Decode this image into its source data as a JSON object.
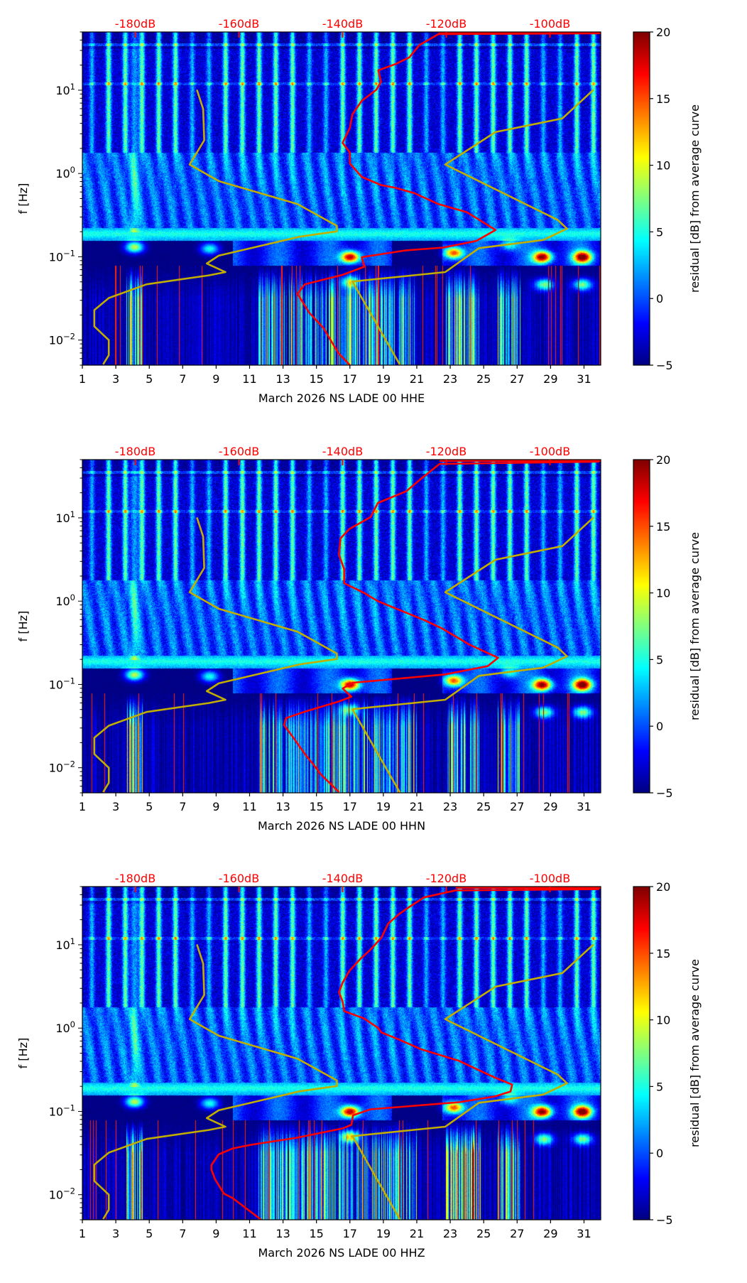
{
  "colors": {
    "psd_curve": "#ff0000",
    "noise_models": "#c2ae00",
    "top_axis_text": "#ff0000"
  },
  "noise_models": {
    "low_noise_model": [
      [
        10.1,
        -168.1
      ],
      [
        5.96,
        -166.9
      ],
      [
        2.5,
        -166.7
      ],
      [
        1.28,
        -169.5
      ],
      [
        0.81,
        -163.9
      ],
      [
        0.43,
        -148.7
      ],
      [
        0.235,
        -141.1
      ],
      [
        0.202,
        -141.1
      ],
      [
        0.174,
        -148.3
      ],
      [
        0.103,
        -163.9
      ],
      [
        0.083,
        -166.2
      ],
      [
        0.0655,
        -162.6
      ],
      [
        0.0598,
        -165.8
      ],
      [
        0.0467,
        -177.8
      ],
      [
        0.032,
        -185.1
      ],
      [
        0.0229,
        -187.9
      ],
      [
        0.0146,
        -187.9
      ],
      [
        0.01,
        -185.1
      ],
      [
        0.0066,
        -185.1
      ],
      [
        0.0051,
        -186.2
      ]
    ],
    "high_noise_model": [
      [
        10.1,
        -91.6
      ],
      [
        4.58,
        -97.6
      ],
      [
        3.14,
        -110.5
      ],
      [
        1.28,
        -120.2
      ],
      [
        0.277,
        -98.5
      ],
      [
        0.218,
        -96.7
      ],
      [
        0.159,
        -101.3
      ],
      [
        0.127,
        -113.7
      ],
      [
        0.0655,
        -120.2
      ],
      [
        0.0504,
        -138.1
      ],
      [
        0.005,
        -128.9
      ]
    ]
  },
  "chart_data": [
    {
      "type": "heatmap",
      "xlabel": "March 2026 NS LADE 00 HHE",
      "ylabel": "f [Hz]",
      "xlim": [
        1,
        32
      ],
      "x_ticks": [
        "1",
        "3",
        "5",
        "7",
        "9",
        "11",
        "13",
        "15",
        "17",
        "19",
        "21",
        "23",
        "25",
        "27",
        "29",
        "31"
      ],
      "ylim": [
        0.005,
        50
      ],
      "yscale": "log",
      "y_ticks": [
        {
          "value": 10,
          "base": "10",
          "exp": "1"
        },
        {
          "value": 1,
          "base": "10",
          "exp": "0"
        },
        {
          "value": 0.1,
          "base": "10",
          "exp": "−1"
        },
        {
          "value": 0.01,
          "base": "10",
          "exp": "−2"
        }
      ],
      "top_axis": {
        "range_db": [
          -190.2,
          -90.2
        ],
        "values": [
          -180,
          -160,
          -140,
          -120,
          -100
        ],
        "labels": [
          "-180dB",
          "-160dB",
          "-140dB",
          "-120dB",
          "-100dB"
        ]
      },
      "colorbar": {
        "min": -5,
        "max": 20,
        "ticks": [
          "−5",
          "0",
          "5",
          "10",
          "15",
          "20"
        ],
        "tick_values": [
          -5,
          0,
          5,
          10,
          15,
          20
        ],
        "label": "residual [dB] from average curve",
        "colormap": "jet"
      },
      "events": [
        [
          4.1,
          -0.88,
          14
        ],
        [
          8.6,
          -0.9,
          10
        ],
        [
          17.0,
          -1.0,
          22
        ],
        [
          23.2,
          -0.95,
          18
        ],
        [
          28.5,
          -1.0,
          22
        ],
        [
          30.9,
          -1.0,
          22
        ],
        [
          26.5,
          -0.85,
          8
        ],
        [
          28.6,
          -1.33,
          12
        ],
        [
          30.9,
          -1.33,
          12
        ],
        [
          17,
          -1.3,
          10
        ]
      ],
      "psd_curve": [
        [
          48.2,
          -90.7
        ],
        [
          47.1,
          -121.5
        ],
        [
          34.8,
          -125.2
        ],
        [
          24.8,
          -127.1
        ],
        [
          20.6,
          -129.8
        ],
        [
          17.3,
          -133.1
        ],
        [
          12.6,
          -132.6
        ],
        [
          10.1,
          -133.5
        ],
        [
          7.46,
          -136.3
        ],
        [
          5.13,
          -138.1
        ],
        [
          3.52,
          -138.6
        ],
        [
          2.33,
          -140.0
        ],
        [
          1.79,
          -138.6
        ],
        [
          1.32,
          -138.6
        ],
        [
          0.91,
          -136.3
        ],
        [
          0.726,
          -132.6
        ],
        [
          0.673,
          -129.8
        ],
        [
          0.579,
          -126.1
        ],
        [
          0.429,
          -121.5
        ],
        [
          0.342,
          -116.0
        ],
        [
          0.21,
          -110.5
        ],
        [
          0.155,
          -114.2
        ],
        [
          0.129,
          -120.6
        ],
        [
          0.119,
          -128.0
        ],
        [
          0.099,
          -136.3
        ],
        [
          0.076,
          -135.8
        ],
        [
          0.0607,
          -140.0
        ],
        [
          0.0467,
          -147.3
        ],
        [
          0.0359,
          -148.7
        ],
        [
          0.0212,
          -146.4
        ],
        [
          0.014,
          -143.7
        ],
        [
          0.0071,
          -140.9
        ],
        [
          0.005,
          -138.6
        ]
      ]
    },
    {
      "type": "heatmap",
      "xlabel": "March 2026 NS LADE 00 HHN",
      "ylabel": "f [Hz]",
      "xlim": [
        1,
        32
      ],
      "x_ticks": [
        "1",
        "3",
        "5",
        "7",
        "9",
        "11",
        "13",
        "15",
        "17",
        "19",
        "21",
        "23",
        "25",
        "27",
        "29",
        "31"
      ],
      "ylim": [
        0.005,
        50
      ],
      "yscale": "log",
      "y_ticks": [
        {
          "value": 10,
          "base": "10",
          "exp": "1"
        },
        {
          "value": 1,
          "base": "10",
          "exp": "0"
        },
        {
          "value": 0.1,
          "base": "10",
          "exp": "−1"
        },
        {
          "value": 0.01,
          "base": "10",
          "exp": "−2"
        }
      ],
      "top_axis": {
        "range_db": [
          -190.2,
          -90.2
        ],
        "values": [
          -180,
          -160,
          -140,
          -120,
          -100
        ],
        "labels": [
          "-180dB",
          "-160dB",
          "-140dB",
          "-120dB",
          "-100dB"
        ]
      },
      "colorbar": {
        "min": -5,
        "max": 20,
        "ticks": [
          "−5",
          "0",
          "5",
          "10",
          "15",
          "20"
        ],
        "tick_values": [
          -5,
          0,
          5,
          10,
          15,
          20
        ],
        "label": "residual [dB] from average curve",
        "colormap": "jet"
      },
      "events": [
        [
          4.1,
          -0.88,
          14
        ],
        [
          8.6,
          -0.9,
          10
        ],
        [
          17.0,
          -1.0,
          22
        ],
        [
          23.2,
          -0.95,
          18
        ],
        [
          28.5,
          -1.0,
          22
        ],
        [
          30.9,
          -1.0,
          22
        ],
        [
          26.5,
          -0.85,
          8
        ],
        [
          28.6,
          -1.33,
          12
        ],
        [
          30.9,
          -1.33,
          12
        ],
        [
          17,
          -1.3,
          10
        ]
      ],
      "psd_curve": [
        [
          47.3,
          -90.5
        ],
        [
          44.4,
          -121.3
        ],
        [
          29,
          -125.0
        ],
        [
          20.9,
          -127.7
        ],
        [
          15.1,
          -133.2
        ],
        [
          10.2,
          -134.6
        ],
        [
          7.36,
          -138.7
        ],
        [
          5.66,
          -140.4
        ],
        [
          3.59,
          -140.7
        ],
        [
          2.42,
          -139.7
        ],
        [
          1.64,
          -139.7
        ],
        [
          1.26,
          -135.9
        ],
        [
          1.0,
          -133.2
        ],
        [
          0.594,
          -124.3
        ],
        [
          0.473,
          -120.9
        ],
        [
          0.3,
          -115.5
        ],
        [
          0.209,
          -110.0
        ],
        [
          0.166,
          -112.0
        ],
        [
          0.132,
          -120.2
        ],
        [
          0.105,
          -138.0
        ],
        [
          0.0895,
          -140.0
        ],
        [
          0.0713,
          -138.3
        ],
        [
          0.0625,
          -140.7
        ],
        [
          0.0466,
          -147.5
        ],
        [
          0.0395,
          -150.9
        ],
        [
          0.0325,
          -151.3
        ],
        [
          0.0234,
          -149.6
        ],
        [
          0.0144,
          -147.2
        ],
        [
          0.0107,
          -145.5
        ],
        [
          0.0082,
          -144.1
        ],
        [
          0.0051,
          -140.7
        ]
      ]
    },
    {
      "type": "heatmap",
      "xlabel": "March 2026 NS LADE 00 HHZ",
      "ylabel": "f [Hz]",
      "xlim": [
        1,
        32
      ],
      "x_ticks": [
        "1",
        "3",
        "5",
        "7",
        "9",
        "11",
        "13",
        "15",
        "17",
        "19",
        "21",
        "23",
        "25",
        "27",
        "29",
        "31"
      ],
      "ylim": [
        0.005,
        50
      ],
      "yscale": "log",
      "y_ticks": [
        {
          "value": 10,
          "base": "10",
          "exp": "1"
        },
        {
          "value": 1,
          "base": "10",
          "exp": "0"
        },
        {
          "value": 0.1,
          "base": "10",
          "exp": "−1"
        },
        {
          "value": 0.01,
          "base": "10",
          "exp": "−2"
        }
      ],
      "top_axis": {
        "range_db": [
          -190.2,
          -90.2
        ],
        "values": [
          -180,
          -160,
          -140,
          -120,
          -100
        ],
        "labels": [
          "-180dB",
          "-160dB",
          "-140dB",
          "-120dB",
          "-100dB"
        ]
      },
      "colorbar": {
        "min": -5,
        "max": 20,
        "ticks": [
          "−5",
          "0",
          "5",
          "10",
          "15",
          "20"
        ],
        "tick_values": [
          -5,
          0,
          5,
          10,
          15,
          20
        ],
        "label": "residual [dB] from average curve",
        "colormap": "jet"
      },
      "events": [
        [
          4.1,
          -0.88,
          14
        ],
        [
          8.6,
          -0.9,
          10
        ],
        [
          17.0,
          -1.0,
          22
        ],
        [
          23.2,
          -0.95,
          18
        ],
        [
          28.5,
          -1.0,
          22
        ],
        [
          30.9,
          -1.0,
          22
        ],
        [
          26.5,
          -0.85,
          8
        ],
        [
          28.6,
          -1.33,
          12
        ],
        [
          30.9,
          -1.33,
          12
        ],
        [
          17,
          -1.3,
          14
        ]
      ],
      "psd_curve": [
        [
          46.6,
          -90.5
        ],
        [
          45.1,
          -118.2
        ],
        [
          37.1,
          -124.3
        ],
        [
          28.5,
          -127.1
        ],
        [
          23.4,
          -129.1
        ],
        [
          18.0,
          -131.2
        ],
        [
          12.2,
          -132.5
        ],
        [
          8.77,
          -134.6
        ],
        [
          6.75,
          -136.6
        ],
        [
          4.86,
          -138.7
        ],
        [
          3.51,
          -140.0
        ],
        [
          2.7,
          -140.7
        ],
        [
          2.08,
          -140.0
        ],
        [
          1.6,
          -139.7
        ],
        [
          1.31,
          -135.9
        ],
        [
          1.01,
          -133.2
        ],
        [
          0.888,
          -132.5
        ],
        [
          0.729,
          -129.1
        ],
        [
          0.561,
          -125.0
        ],
        [
          0.404,
          -117.5
        ],
        [
          0.256,
          -110.7
        ],
        [
          0.21,
          -107.3
        ],
        [
          0.173,
          -107.6
        ],
        [
          0.151,
          -110.7
        ],
        [
          0.129,
          -117.5
        ],
        [
          0.106,
          -134.6
        ],
        [
          0.0897,
          -138.0
        ],
        [
          0.069,
          -138.3
        ],
        [
          0.0625,
          -140.0
        ],
        [
          0.0482,
          -148.9
        ],
        [
          0.0396,
          -157.8
        ],
        [
          0.0359,
          -161.2
        ],
        [
          0.0305,
          -163.9
        ],
        [
          0.0227,
          -165.3
        ],
        [
          0.0199,
          -165.3
        ],
        [
          0.0153,
          -164.6
        ],
        [
          0.0103,
          -162.9
        ],
        [
          0.0091,
          -161.2
        ],
        [
          0.005,
          -155.7
        ]
      ]
    }
  ]
}
